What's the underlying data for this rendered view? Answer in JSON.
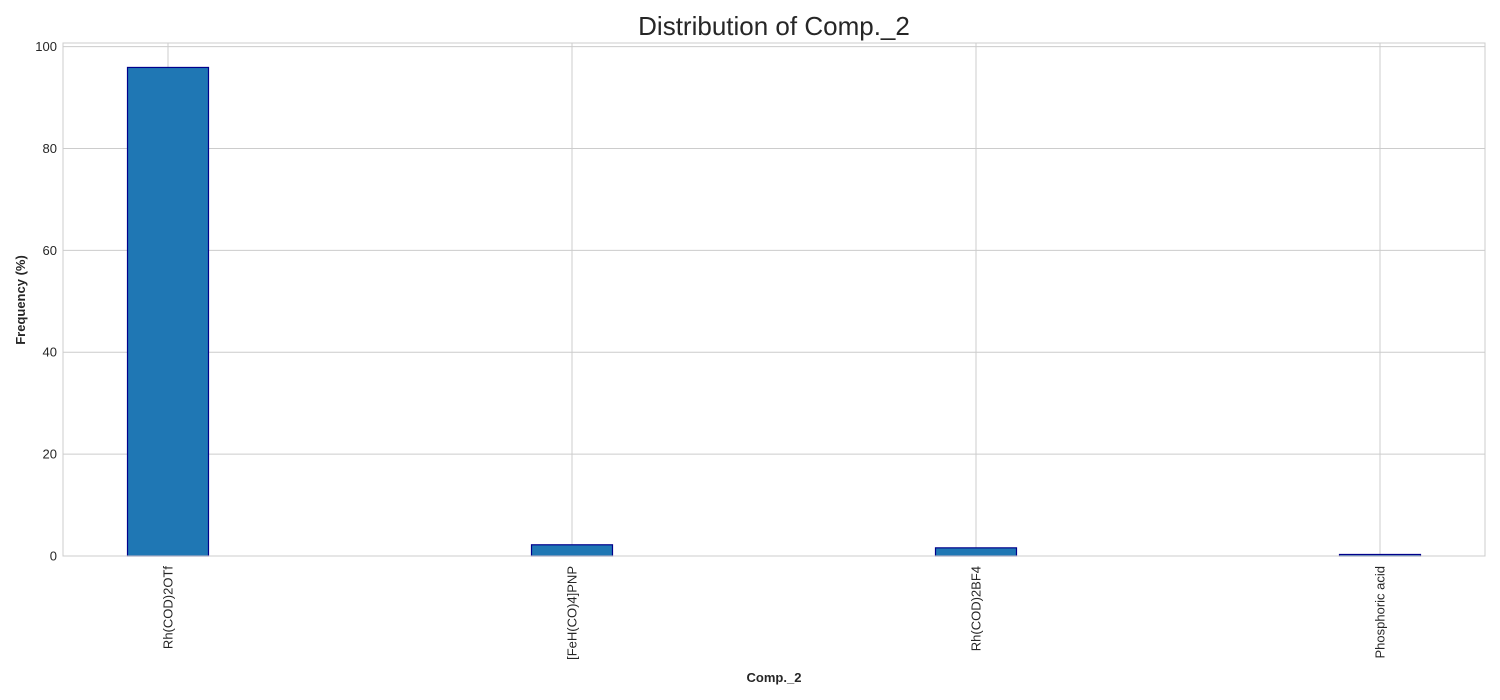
{
  "chart_data": {
    "type": "bar",
    "title": "Distribution of Comp._2",
    "xlabel": "Comp._2",
    "ylabel": "Frequency (%)",
    "categories": [
      "Rh(COD)2OTf",
      "[FeH(CO)4]PNP",
      "Rh(COD)2BF4",
      "Phosphoric acid"
    ],
    "values": [
      95.9,
      2.2,
      1.6,
      0.3
    ],
    "ylim": [
      0,
      100
    ],
    "yticks": [
      0,
      20,
      40,
      60,
      80,
      100
    ],
    "grid": true,
    "legend": "none",
    "colors": {
      "bar_fill": "#1f77b4",
      "bar_edge": "#00008b"
    }
  }
}
